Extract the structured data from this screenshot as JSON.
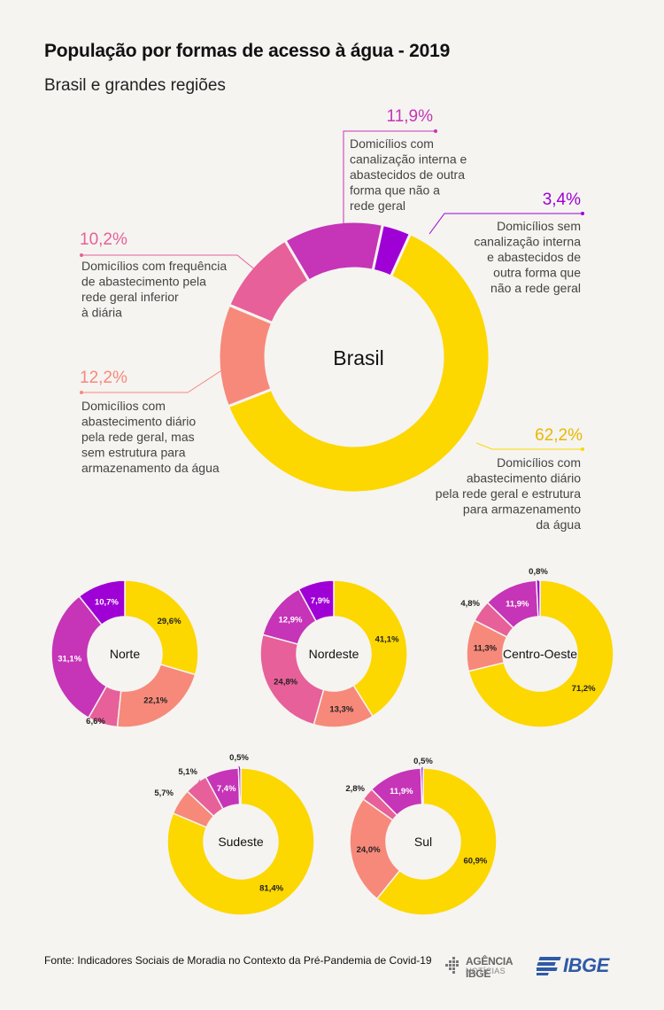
{
  "title": "População por formas de acesso à água - 2019",
  "subtitle": "Brasil e grandes regiões",
  "footer": {
    "source": "Fonte: Indicadores Sociais de Moradia no Contexto da Pré-Pandemia de Covid-19",
    "logo_agencia_line1": "AGÊNCIA IBGE",
    "logo_agencia_line2": "NOTÍCIAS",
    "logo_ibge": "IBGE"
  },
  "colors": {
    "yellow": "#fcd700",
    "salmon": "#f7897a",
    "pink": "#e7609a",
    "magenta": "#c634b7",
    "purple": "#9f00d6"
  },
  "chart_data": [
    {
      "type": "donut",
      "center_label": "Brasil",
      "categories": [
        "Domicílios com abastecimento diário pela rede geral e estrutura para armazenamento da água",
        "Domicílios com abastecimento diário pela rede geral, mas sem estrutura para armazenamento da água",
        "Domicílios com frequência de abastecimento pela rede geral inferior à diária",
        "Domicílios com canalização interna e abastecidos de outra forma que não a rede geral",
        "Domicílios sem canalização interna e abastecidos de outra forma que não a rede geral"
      ],
      "values": [
        62.2,
        12.2,
        10.2,
        11.9,
        3.4
      ],
      "labels": [
        "62,2%",
        "12,2%",
        "10,2%",
        "11,9%",
        "3,4%"
      ]
    },
    {
      "type": "donut",
      "center_label": "Norte",
      "values": [
        29.6,
        22.1,
        6.6,
        31.1,
        10.7
      ],
      "labels": [
        "29,6%",
        "22,1%",
        "6,6%",
        "31,1%",
        "10,7%"
      ]
    },
    {
      "type": "donut",
      "center_label": "Nordeste",
      "values": [
        41.1,
        13.3,
        24.8,
        12.9,
        7.9
      ],
      "labels": [
        "41,1%",
        "13,3%",
        "24,8%",
        "12,9%",
        "7,9%"
      ]
    },
    {
      "type": "donut",
      "center_label": "Centro-Oeste",
      "values": [
        71.2,
        11.3,
        4.8,
        11.9,
        0.8
      ],
      "labels": [
        "71,2%",
        "11,3%",
        "4,8%",
        "11,9%",
        "0,8%"
      ]
    },
    {
      "type": "donut",
      "center_label": "Sudeste",
      "values": [
        81.4,
        5.7,
        5.1,
        7.4,
        0.5
      ],
      "labels": [
        "81,4%",
        "5,7%",
        "5,1%",
        "7,4%",
        "0,5%"
      ]
    },
    {
      "type": "donut",
      "center_label": "Sul",
      "values": [
        60.9,
        24.0,
        2.8,
        11.9,
        0.5
      ],
      "labels": [
        "60,9%",
        "24,0%",
        "2,8%",
        "11,9%",
        "0,5%"
      ]
    }
  ]
}
